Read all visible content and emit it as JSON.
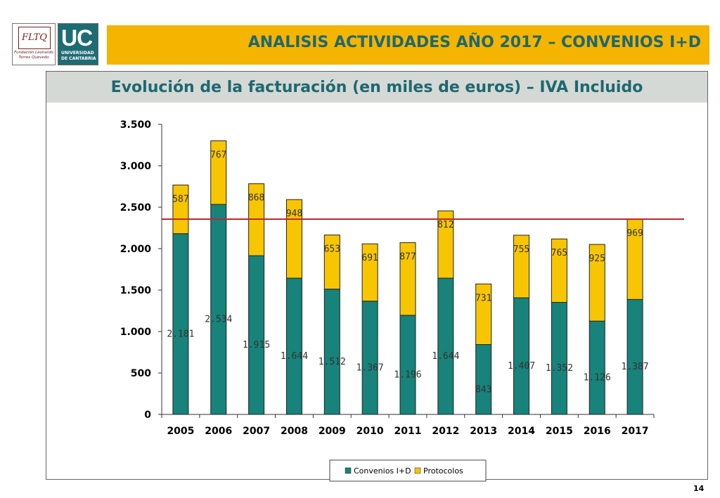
{
  "logos": {
    "fltq_mark": "FLTQ",
    "fltq_text_1": "Fundación Leonardo",
    "fltq_text_2": "Torres Quevedo",
    "uc_mark": "UC",
    "uc_text_1": "UNIVERSIDAD",
    "uc_text_2": "DE CANTABRIA"
  },
  "header": {
    "title": "ANALISIS ACTIVIDADES AÑO 2017 – CONVENIOS I+D"
  },
  "panel": {
    "title": "Evolución de la facturación (en miles de euros) – IVA Incluido"
  },
  "page_number": "14",
  "colors": {
    "convenios": "#17837a",
    "protocolos": "#f8c600",
    "reference_line": "#c0282a",
    "axis": "#333333"
  },
  "chart_data": {
    "type": "bar",
    "stacked": true,
    "title": "Evolución de la facturación (en miles de euros) – IVA Incluido",
    "categories": [
      "2005",
      "2006",
      "2007",
      "2008",
      "2009",
      "2010",
      "2011",
      "2012",
      "2013",
      "2014",
      "2015",
      "2016",
      "2017"
    ],
    "series": [
      {
        "name": "Convenios I+D",
        "values": [
          2181,
          2534,
          1915,
          1644,
          1512,
          1367,
          1196,
          1644,
          843,
          1407,
          1352,
          1126,
          1387
        ],
        "labels": [
          "2.181",
          "2.534",
          "1.915",
          "1.644",
          "1.512",
          "1.367",
          "1.196",
          "1.644",
          "843",
          "1.407",
          "1.352",
          "1.126",
          "1.387"
        ]
      },
      {
        "name": "Protocolos",
        "values": [
          587,
          767,
          868,
          948,
          653,
          691,
          877,
          812,
          731,
          755,
          765,
          925,
          969
        ],
        "labels": [
          "587",
          "767",
          "868",
          "948",
          "653",
          "691",
          "877",
          "812",
          "731",
          "755",
          "765",
          "925",
          "969"
        ]
      }
    ],
    "reference_line": 2356,
    "ylim": [
      0,
      3500
    ],
    "yticks": [
      0,
      500,
      1000,
      1500,
      2000,
      2500,
      3000,
      3500
    ],
    "ytick_labels": [
      "0",
      "500",
      "1.000",
      "1.500",
      "2.000",
      "2.500",
      "3.000",
      "3.500"
    ],
    "legend_position": "bottom",
    "xlabel": "",
    "ylabel": ""
  }
}
